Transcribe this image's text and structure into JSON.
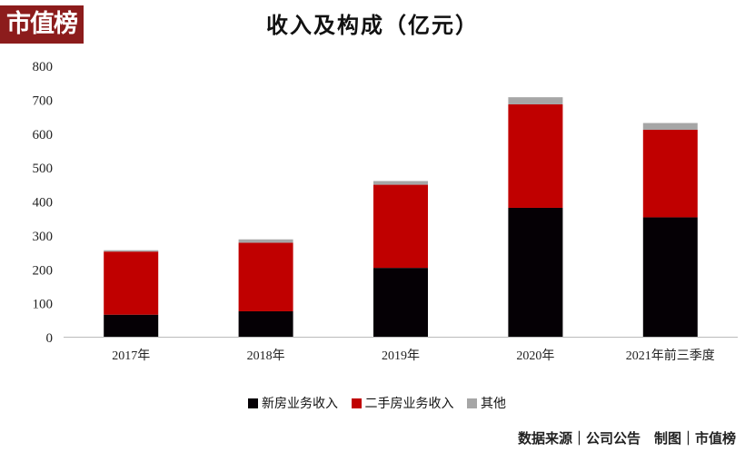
{
  "logo": "市值榜",
  "chart_data": {
    "type": "bar",
    "stacked": true,
    "title": "收入及构成（亿元）",
    "categories": [
      "2017年",
      "2018年",
      "2019年",
      "2020年",
      "2021年前三季度"
    ],
    "series": [
      {
        "name": "新房业务收入",
        "color": "#050005",
        "values": [
          65,
          75,
          203,
          380,
          352
        ]
      },
      {
        "name": "二手房业务收入",
        "color": "#c00000",
        "values": [
          186,
          202,
          245,
          305,
          258
        ]
      },
      {
        "name": "其他",
        "color": "#a6a6a6",
        "values": [
          4,
          10,
          11,
          21,
          20
        ]
      }
    ],
    "ylim": [
      0,
      800
    ],
    "yticks": [
      "0",
      "100",
      "200",
      "300",
      "400",
      "500",
      "600",
      "700",
      "800"
    ],
    "grid": false,
    "legend": "bottom"
  },
  "source": "数据来源｜公司公告　制图｜市值榜"
}
